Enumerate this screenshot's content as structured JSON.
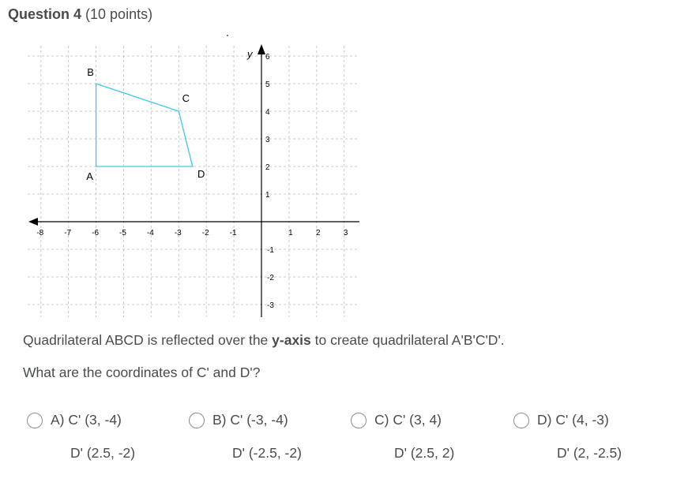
{
  "question": {
    "title": "Question 4",
    "points": "(10 points)"
  },
  "graph": {
    "axis_y_label": "y",
    "x_ticks": [
      "-8",
      "-7",
      "-6",
      "-5",
      "-4",
      "-3",
      "-2",
      "-1",
      "1",
      "2",
      "3"
    ],
    "y_ticks": [
      "6",
      "5",
      "4",
      "3",
      "2",
      "1",
      "-1",
      "-2",
      "-3"
    ],
    "vertex_labels": {
      "A": "A",
      "B": "B",
      "C": "C",
      "D": "D"
    },
    "shape_color": "#3ec8e8",
    "grid_color": "#c8c8c8",
    "points": {
      "A": [
        -6,
        2
      ],
      "B": [
        -6,
        5
      ],
      "C": [
        -3,
        4
      ],
      "D": [
        -2.5,
        2
      ]
    },
    "x_range": [
      -8,
      3
    ],
    "y_range": [
      -3,
      6
    ]
  },
  "stem": {
    "line1_pre": "Quadrilateral ABCD is reflected over the ",
    "line1_bold": "y-axis",
    "line1_post": " to create quadrilateral A'B'C'D'.",
    "line2": "What are the coordinates of C' and D'?"
  },
  "choices": [
    {
      "line1": "A) C' (3, -4)",
      "line2": "D' (2.5, -2)"
    },
    {
      "line1": "B) C' (-3, -4)",
      "line2": "D' (-2.5, -2)"
    },
    {
      "line1": "C) C' (3, 4)",
      "line2": "D' (2.5, 2)"
    },
    {
      "line1": "D) C' (4, -3)",
      "line2": "D' (2, -2.5)"
    }
  ]
}
